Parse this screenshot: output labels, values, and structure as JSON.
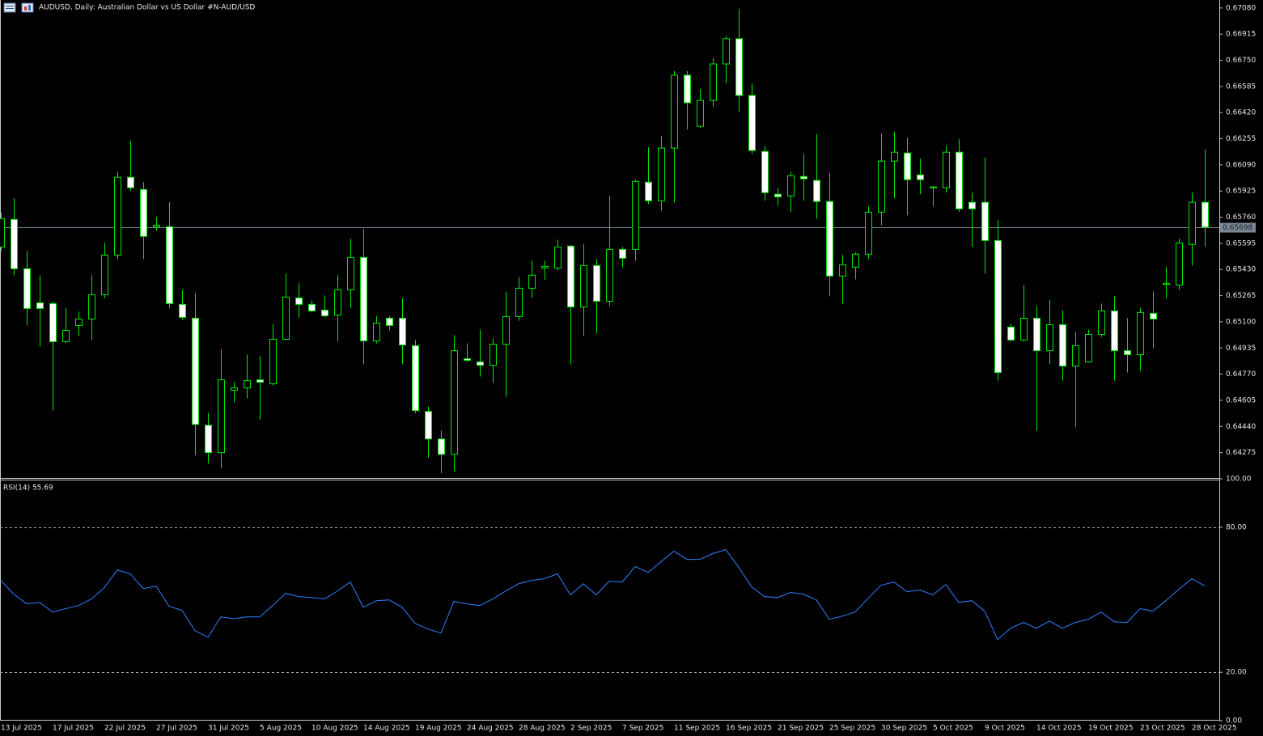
{
  "chart_data": [
    {
      "type": "candlestick",
      "title": "AUDUSD, Daily:  Australian Dollar vs US Dollar #N-AUD/USD",
      "categories": [
        "13 Jul 2025",
        null,
        null,
        null,
        "17 Jul 2025",
        null,
        null,
        null,
        "22 Jul 2025",
        null,
        null,
        null,
        "27 Jul 2025",
        null,
        null,
        null,
        "31 Jul 2025",
        null,
        null,
        null,
        "5 Aug 2025",
        null,
        null,
        null,
        "10 Aug 2025",
        null,
        null,
        null,
        "14 Aug 2025",
        null,
        null,
        null,
        "19 Aug 2025",
        null,
        null,
        null,
        "24 Aug 2025",
        null,
        null,
        null,
        "28 Aug 2025",
        null,
        null,
        null,
        "2 Sep 2025",
        null,
        null,
        null,
        "7 Sep 2025",
        null,
        null,
        null,
        "11 Sep 2025",
        null,
        null,
        null,
        "16 Sep 2025",
        null,
        null,
        null,
        "21 Sep 2025",
        null,
        null,
        null,
        "25 Sep 2025",
        null,
        null,
        null,
        "30 Sep 2025",
        null,
        null,
        null,
        "5 Oct 2025",
        null,
        null,
        null,
        "9 Oct 2025",
        null,
        null,
        null,
        "14 Oct 2025",
        null,
        null,
        null,
        "19 Oct 2025",
        null,
        null,
        null,
        "23 Oct 2025",
        null,
        null,
        null,
        "28 Oct 2025",
        null
      ],
      "open": [
        0.65572,
        0.65746,
        0.65435,
        0.6522,
        0.65215,
        0.64975,
        0.65077,
        0.65118,
        0.65271,
        0.65521,
        0.66012,
        0.65935,
        0.657,
        0.657,
        0.6521,
        0.65123,
        0.64448,
        0.64275,
        0.64668,
        0.64683,
        0.64734,
        0.64709,
        0.6499,
        0.65251,
        0.6521,
        0.65174,
        0.65143,
        0.65302,
        0.65506,
        0.6498,
        0.65123,
        0.65123,
        0.64949,
        0.64535,
        0.64361,
        0.64264,
        0.64867,
        0.64847,
        0.64826,
        0.64959,
        0.65133,
        0.65312,
        0.6544,
        0.6544,
        0.65578,
        0.65194,
        0.65455,
        0.6523,
        0.65557,
        0.65557,
        0.65981,
        0.65864,
        0.66196,
        0.66656,
        0.66334,
        0.66497,
        0.66727,
        0.66886,
        0.66528,
        0.66175,
        0.65905,
        0.65894,
        0.66017,
        0.65992,
        0.65859,
        0.65389,
        0.65445,
        0.65527,
        0.65792,
        0.66114,
        0.66165,
        0.66027,
        0.65951,
        0.65946,
        0.6617,
        0.65854,
        0.65854,
        0.65613,
        0.65067,
        0.64985,
        0.65123,
        0.64918,
        0.65082,
        0.64821,
        0.64847,
        0.65021,
        0.65169,
        0.64918,
        0.64893,
        0.65153,
        0.65337,
        0.65332,
        0.65588,
        0.65854
      ],
      "high": [
        0.65792,
        0.65879,
        0.65547,
        0.65394,
        0.6523,
        0.65189,
        0.65164,
        0.65394,
        0.65598,
        0.66048,
        0.66242,
        0.65981,
        0.65762,
        0.65854,
        0.65302,
        0.65281,
        0.64525,
        0.64924,
        0.64719,
        0.64893,
        0.64883,
        0.65087,
        0.65404,
        0.65343,
        0.65235,
        0.65266,
        0.65394,
        0.65624,
        0.65685,
        0.65138,
        0.65138,
        0.65251,
        0.64985,
        0.64566,
        0.64413,
        0.65016,
        0.64964,
        0.65051,
        0.64995,
        0.65291,
        0.65383,
        0.65486,
        0.65486,
        0.65618,
        0.65583,
        0.65588,
        0.65496,
        0.65894,
        0.65572,
        0.65997,
        0.66201,
        0.66273,
        0.66681,
        0.66681,
        0.66569,
        0.66763,
        0.66901,
        0.67075,
        0.66605,
        0.66211,
        0.65946,
        0.66048,
        0.6616,
        0.66283,
        0.66038,
        0.65521,
        0.65537,
        0.65828,
        0.66288,
        0.66298,
        0.66262,
        0.66129,
        0.65956,
        0.66211,
        0.66252,
        0.65915,
        0.66135,
        0.65741,
        0.65087,
        0.65332,
        0.65199,
        0.6524,
        0.65174,
        0.65036,
        0.65051,
        0.65215,
        0.65261,
        0.65123,
        0.65189,
        0.65291,
        0.65445,
        0.65624,
        0.65915,
        0.66186
      ],
      "low": [
        0.65547,
        0.65394,
        0.65077,
        0.64944,
        0.6454,
        0.64964,
        0.6501,
        0.64985,
        0.65251,
        0.65496,
        0.65925,
        0.65496,
        0.65675,
        0.65189,
        0.65113,
        0.64259,
        0.64208,
        0.64177,
        0.64591,
        0.64617,
        0.64484,
        0.64699,
        0.64985,
        0.65128,
        0.65159,
        0.65128,
        0.64975,
        0.65189,
        0.64832,
        0.64964,
        0.65046,
        0.64832,
        0.64525,
        0.64244,
        0.64147,
        0.64157,
        0.64847,
        0.64755,
        0.64714,
        0.64627,
        0.65107,
        0.65251,
        0.65363,
        0.65424,
        0.64832,
        0.6501,
        0.65026,
        0.65199,
        0.65445,
        0.65486,
        0.65843,
        0.65802,
        0.65854,
        0.66313,
        0.66324,
        0.66457,
        0.66605,
        0.66426,
        0.6616,
        0.65864,
        0.65833,
        0.65792,
        0.65864,
        0.65751,
        0.65261,
        0.65215,
        0.65368,
        0.65496,
        0.6571,
        0.65879,
        0.65772,
        0.65905,
        0.65828,
        0.65915,
        0.65792,
        0.65572,
        0.65404,
        0.64729,
        0.64975,
        0.64975,
        0.64413,
        0.64832,
        0.64729,
        0.64438,
        0.64842,
        0.65005,
        0.64729,
        0.6478,
        0.64791,
        0.64934,
        0.65251,
        0.65302,
        0.65455,
        0.65572
      ],
      "close": [
        0.65751,
        0.65435,
        0.65184,
        0.65184,
        0.64975,
        0.65046,
        0.65118,
        0.65271,
        0.65521,
        0.66012,
        0.65946,
        0.65639,
        0.6571,
        0.65215,
        0.65128,
        0.64453,
        0.64275,
        0.64734,
        0.64683,
        0.64729,
        0.64719,
        0.6499,
        0.65256,
        0.6521,
        0.65169,
        0.65138,
        0.65302,
        0.65506,
        0.6498,
        0.65092,
        0.65077,
        0.64954,
        0.6454,
        0.64361,
        0.64264,
        0.64918,
        0.64857,
        0.64826,
        0.64959,
        0.65133,
        0.65312,
        0.65394,
        0.6545,
        0.65572,
        0.65194,
        0.65455,
        0.6523,
        0.65557,
        0.65501,
        0.65986,
        0.65864,
        0.66196,
        0.66656,
        0.66482,
        0.66497,
        0.66727,
        0.66886,
        0.66528,
        0.66181,
        0.65915,
        0.65889,
        0.66022,
        0.66002,
        0.65859,
        0.65389,
        0.6546,
        0.65527,
        0.65792,
        0.66114,
        0.6617,
        0.65997,
        0.65997,
        0.65946,
        0.6617,
        0.65813,
        0.65813,
        0.65613,
        0.6478,
        0.64985,
        0.65123,
        0.64918,
        0.65082,
        0.64821,
        0.64949,
        0.65021,
        0.65169,
        0.64918,
        0.64893,
        0.65159,
        0.65118,
        0.65343,
        0.65598,
        0.65854,
        0.65698
      ],
      "bull_color": "#000000",
      "bear_color": "#ffffff",
      "wick_color": "#00e600",
      "current_price": 0.65698,
      "ylim": [
        0.6412,
        0.6712
      ],
      "yticks": [
        {
          "value": 0.6708,
          "label": "0.67080"
        },
        0.66915,
        {
          "value": 0.6675,
          "label": "0.66750"
        },
        0.66585,
        {
          "value": 0.6642,
          "label": "0.66420"
        },
        0.66255,
        {
          "value": 0.6609,
          "label": "0.66090"
        },
        0.65925,
        {
          "value": 0.6576,
          "label": "0.65760"
        },
        0.65595,
        {
          "value": 0.6543,
          "label": "0.65430"
        },
        0.65265,
        {
          "value": 0.651,
          "label": "0.65100"
        },
        0.64935,
        {
          "value": 0.6477,
          "label": "0.64770"
        },
        0.64605,
        {
          "value": 0.6444,
          "label": "0.64440"
        },
        0.64275
      ],
      "grid": false
    },
    {
      "type": "line",
      "title": "RSI(14) 55.69",
      "color": "#2f7fff",
      "values": [
        58.0,
        52.3,
        48.3,
        48.9,
        44.9,
        46.3,
        47.6,
        50.3,
        55.0,
        62.3,
        60.7,
        54.6,
        55.6,
        47.3,
        45.6,
        37.2,
        34.5,
        42.9,
        42.2,
        42.9,
        42.9,
        47.6,
        52.6,
        51.3,
        50.9,
        50.3,
        53.6,
        57.3,
        46.9,
        49.6,
        49.9,
        46.9,
        40.2,
        37.9,
        36.2,
        49.3,
        48.3,
        47.6,
        50.3,
        53.6,
        56.6,
        58.0,
        58.7,
        60.7,
        52.0,
        56.6,
        52.0,
        57.7,
        57.3,
        63.7,
        61.3,
        65.7,
        70.1,
        66.7,
        66.7,
        69.1,
        70.7,
        63.4,
        55.3,
        51.3,
        50.9,
        53.0,
        52.3,
        49.9,
        41.9,
        43.2,
        44.9,
        50.6,
        56.0,
        57.3,
        53.3,
        54.0,
        52.0,
        56.3,
        48.9,
        49.6,
        45.3,
        33.5,
        38.2,
        40.6,
        38.2,
        41.2,
        38.2,
        40.6,
        41.9,
        44.9,
        40.9,
        40.6,
        46.3,
        45.3,
        49.6,
        54.3,
        58.7,
        55.69
      ],
      "ylim": [
        0,
        100
      ],
      "yticks": [
        {
          "value": 100,
          "label": "100.00"
        },
        {
          "value": 80,
          "label": "80.00"
        },
        {
          "value": 20,
          "label": "20.00"
        },
        {
          "value": 0,
          "label": "0.00"
        }
      ],
      "grid": true
    }
  ]
}
